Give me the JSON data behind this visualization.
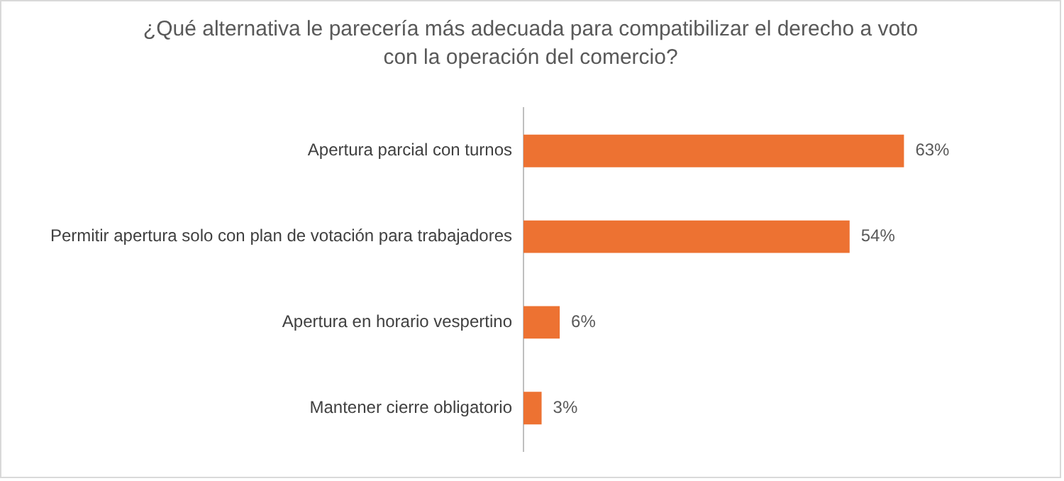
{
  "chart_data": {
    "type": "bar",
    "orientation": "horizontal",
    "title": "¿Qué alternativa le parecería más adecuada para compatibilizar el derecho a voto con la operación del comercio?",
    "categories": [
      "Apertura parcial con turnos",
      "Permitir apertura solo con plan de votación para trabajadores",
      "Apertura en horario vespertino",
      "Mantener cierre obligatorio"
    ],
    "values": [
      63,
      54,
      6,
      3
    ],
    "value_labels": [
      "63%",
      "54%",
      "6%",
      "3%"
    ],
    "color": "#ed7232",
    "tick_labels": "y"
  }
}
